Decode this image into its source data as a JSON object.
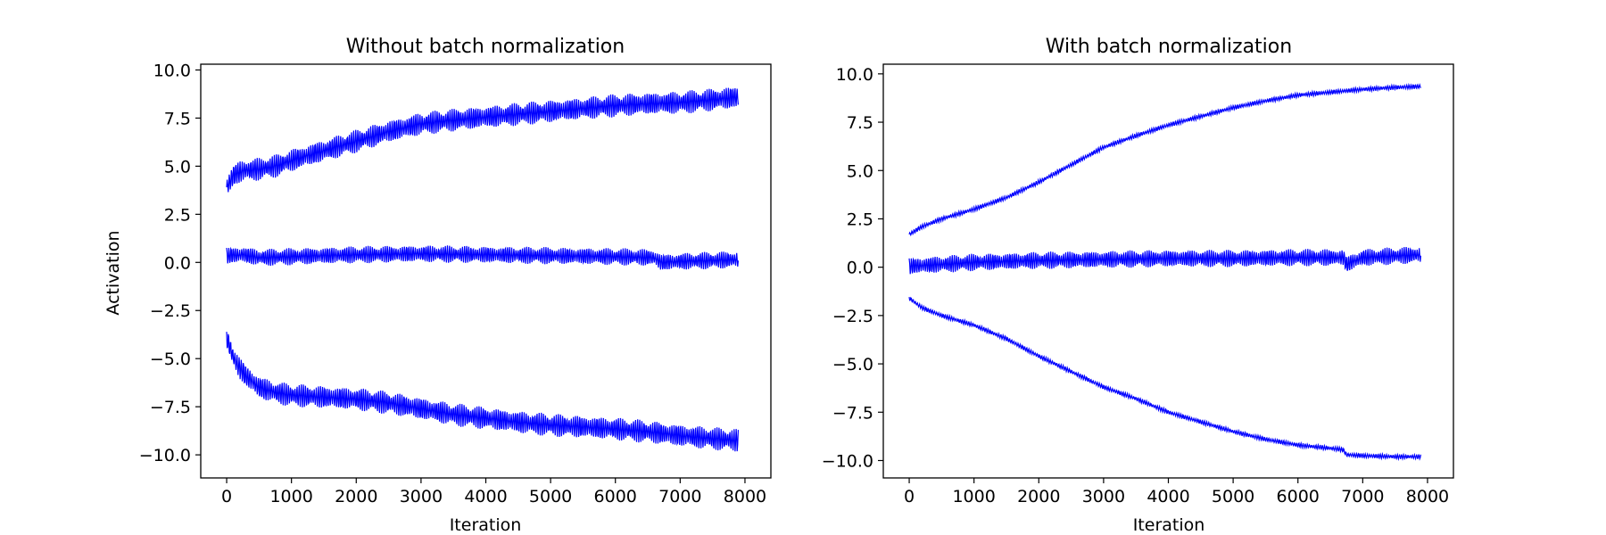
{
  "chart_data": [
    {
      "type": "line",
      "title": "Without batch normalization",
      "xlabel": "Iteration",
      "ylabel": "Activation",
      "xlim": [
        -400,
        8400
      ],
      "ylim": [
        -11.2,
        10.3
      ],
      "xticks": [
        0,
        1000,
        2000,
        3000,
        4000,
        5000,
        6000,
        7000,
        8000
      ],
      "xtick_labels": [
        "0",
        "1000",
        "2000",
        "3000",
        "4000",
        "5000",
        "6000",
        "7000",
        "8000"
      ],
      "yticks": [
        10.0,
        7.5,
        5.0,
        2.5,
        0.0,
        -2.5,
        -5.0,
        -7.5,
        -10.0
      ],
      "ytick_labels": [
        "10.0",
        "7.5",
        "5.0",
        "2.5",
        "0.0",
        "−2.5",
        "−5.0",
        "−7.5",
        "−10.0"
      ],
      "grid": false,
      "color": "#0000ff",
      "series": [
        {
          "x": [
            0,
            50,
            100,
            200,
            300,
            400,
            500,
            750,
            1000,
            1500,
            2000,
            2500,
            3000,
            3500,
            4000,
            4500,
            5000,
            5500,
            6000,
            6500,
            7000,
            7500,
            7900
          ],
          "y": [
            3.9,
            4.2,
            4.5,
            4.7,
            4.8,
            4.8,
            4.85,
            5.0,
            5.3,
            5.8,
            6.3,
            6.8,
            7.2,
            7.4,
            7.55,
            7.7,
            7.85,
            8.0,
            8.15,
            8.25,
            8.3,
            8.45,
            8.6
          ],
          "band": 0.6
        },
        {
          "x": [
            0,
            250,
            500,
            1000,
            2000,
            3000,
            4000,
            5000,
            6000,
            6600,
            6700,
            7000,
            7900
          ],
          "y": [
            0.35,
            0.4,
            0.25,
            0.3,
            0.4,
            0.45,
            0.4,
            0.35,
            0.3,
            0.25,
            0.0,
            0.05,
            0.15
          ],
          "band": 0.45
        },
        {
          "x": [
            0,
            50,
            100,
            200,
            300,
            400,
            500,
            600,
            800,
            1000,
            1500,
            2000,
            2500,
            3000,
            3500,
            4000,
            4500,
            5000,
            5500,
            6000,
            6500,
            7000,
            7500,
            7900
          ],
          "y": [
            -3.9,
            -4.4,
            -4.9,
            -5.5,
            -5.9,
            -6.2,
            -6.5,
            -6.6,
            -6.8,
            -6.9,
            -7.0,
            -7.1,
            -7.3,
            -7.6,
            -7.9,
            -8.1,
            -8.3,
            -8.45,
            -8.55,
            -8.65,
            -8.8,
            -9.0,
            -9.15,
            -9.25
          ],
          "band": 0.6
        }
      ]
    },
    {
      "type": "line",
      "title": "With batch normalization",
      "xlabel": "Iteration",
      "ylabel": "",
      "xlim": [
        -400,
        8400
      ],
      "ylim": [
        -10.9,
        10.5
      ],
      "xticks": [
        0,
        1000,
        2000,
        3000,
        4000,
        5000,
        6000,
        7000,
        8000
      ],
      "xtick_labels": [
        "0",
        "1000",
        "2000",
        "3000",
        "4000",
        "5000",
        "6000",
        "7000",
        "8000"
      ],
      "yticks": [
        10.0,
        7.5,
        5.0,
        2.5,
        0.0,
        -2.5,
        -5.0,
        -7.5,
        -10.0
      ],
      "ytick_labels": [
        "10.0",
        "7.5",
        "5.0",
        "2.5",
        "0.0",
        "−2.5",
        "−5.0",
        "−7.5",
        "−10.0"
      ],
      "grid": false,
      "color": "#0000ff",
      "series": [
        {
          "x": [
            0,
            200,
            500,
            1000,
            1500,
            2000,
            2500,
            3000,
            3500,
            4000,
            4500,
            5000,
            5500,
            6000,
            6500,
            7000,
            7500,
            7900
          ],
          "y": [
            1.7,
            2.1,
            2.5,
            3.0,
            3.6,
            4.4,
            5.3,
            6.2,
            6.8,
            7.35,
            7.8,
            8.25,
            8.6,
            8.9,
            9.05,
            9.2,
            9.3,
            9.35
          ],
          "band": 0.12
        },
        {
          "x": [
            0,
            500,
            1000,
            2000,
            3000,
            4000,
            5000,
            6000,
            6700,
            6750,
            7000,
            7900
          ],
          "y": [
            0.05,
            0.15,
            0.25,
            0.35,
            0.4,
            0.45,
            0.45,
            0.5,
            0.5,
            0.15,
            0.5,
            0.65
          ],
          "band": 0.45
        },
        {
          "x": [
            0,
            200,
            500,
            1000,
            1500,
            2000,
            2500,
            3000,
            3500,
            4000,
            4500,
            5000,
            5500,
            6000,
            6600,
            6700,
            6750,
            7000,
            7500,
            7900
          ],
          "y": [
            -1.6,
            -2.1,
            -2.5,
            -3.0,
            -3.7,
            -4.6,
            -5.4,
            -6.2,
            -6.8,
            -7.5,
            -8.0,
            -8.5,
            -8.9,
            -9.2,
            -9.4,
            -9.45,
            -9.7,
            -9.75,
            -9.8,
            -9.8
          ],
          "band": 0.12
        }
      ]
    }
  ]
}
